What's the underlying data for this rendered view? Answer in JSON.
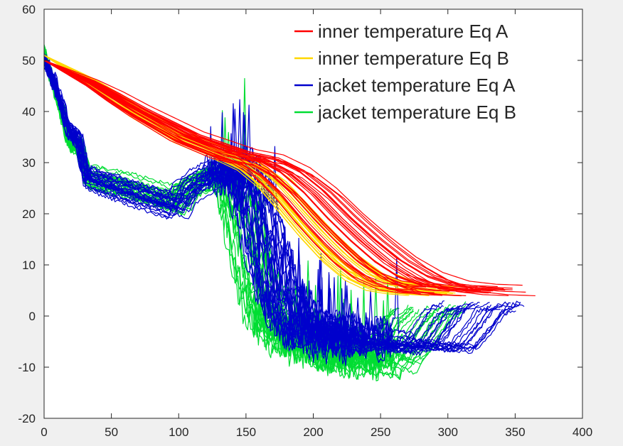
{
  "chart_data": {
    "type": "line",
    "title": "",
    "xlabel": "",
    "ylabel": "",
    "xlim": [
      0,
      400
    ],
    "ylim": [
      -20,
      60
    ],
    "xticks": [
      0,
      50,
      100,
      150,
      200,
      250,
      300,
      350,
      400
    ],
    "yticks": [
      -20,
      -10,
      0,
      10,
      20,
      30,
      40,
      50,
      60
    ],
    "grid": false,
    "legend_position": "top-right",
    "series": [
      {
        "name": "inner temperature Eq A",
        "color": "#ff0000",
        "profile": {
          "x": [
            0,
            40,
            80,
            120,
            160,
            180,
            200,
            220,
            240,
            260,
            280,
            300,
            320,
            340,
            360
          ],
          "y": [
            50,
            45.5,
            40,
            35,
            31.5,
            30.5,
            28,
            24,
            19,
            14.5,
            10.5,
            7.5,
            5.8,
            5.2,
            5
          ]
        },
        "curves": 30,
        "x_stretch": [
          0.78,
          1.0
        ]
      },
      {
        "name": "inner temperature Eq B",
        "color": "#ffd700",
        "profile": {
          "x": [
            0,
            40,
            80,
            120,
            160,
            180,
            200,
            220,
            240,
            260,
            280,
            300,
            320,
            340
          ],
          "y": [
            51,
            46,
            40,
            35,
            31.5,
            29.5,
            26,
            21,
            16,
            11.5,
            8,
            6,
            5.3,
            5
          ]
        },
        "curves": 30,
        "x_stretch": [
          0.78,
          0.92
        ]
      },
      {
        "name": "jacket temperature Eq A",
        "color": "#0000cc",
        "profile": {
          "x": [
            0,
            8,
            18,
            25,
            30,
            60,
            95,
            100,
            115,
            125,
            140,
            150,
            165,
            180,
            200,
            230,
            260,
            280,
            290,
            300,
            310
          ],
          "y": [
            50,
            45,
            36,
            34,
            27,
            24,
            21,
            24,
            27,
            28,
            28,
            20,
            5,
            -2,
            -4,
            -5,
            -6,
            -6.5,
            -3,
            1,
            2
          ]
        },
        "curves": 26,
        "x_stretch": [
          0.95,
          1.16
        ]
      },
      {
        "name": "jacket temperature Eq B",
        "color": "#00dd33",
        "profile": {
          "x": [
            0,
            8,
            18,
            25,
            30,
            60,
            95,
            100,
            115,
            125,
            130,
            140,
            150,
            165,
            190,
            220,
            240,
            250,
            260,
            270
          ],
          "y": [
            51,
            44,
            34,
            33,
            27,
            25,
            22,
            25,
            27,
            28,
            27,
            18,
            5,
            -3,
            -6,
            -8,
            -10,
            -6,
            -1,
            1.5
          ]
        },
        "curves": 26,
        "x_stretch": [
          0.95,
          1.17
        ]
      }
    ]
  }
}
